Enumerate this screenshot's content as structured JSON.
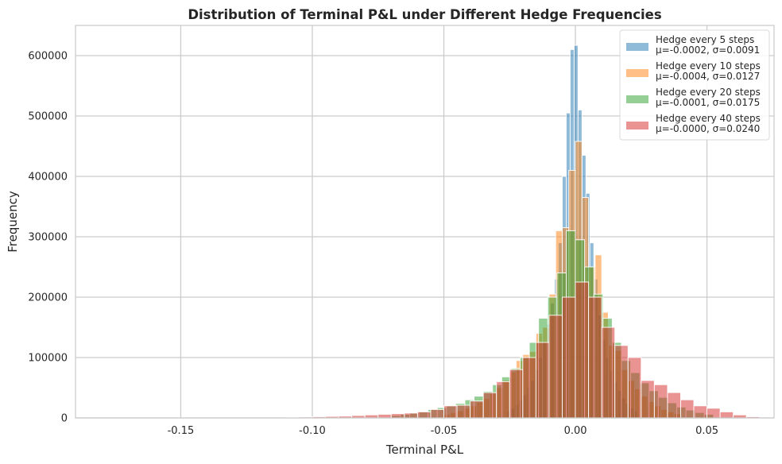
{
  "chart_data": {
    "type": "histogram",
    "title": "Distribution of Terminal P&L under Different Hedge Frequencies",
    "xlabel": "Terminal P&L",
    "ylabel": "Frequency",
    "xlim": [
      -0.19,
      0.0755
    ],
    "ylim": [
      0,
      650000
    ],
    "x_ticks": [
      -0.15,
      -0.1,
      -0.05,
      0.0,
      0.05
    ],
    "x_tick_labels": [
      "-0.15",
      "-0.10",
      "-0.05",
      "0.00",
      "0.05"
    ],
    "y_ticks": [
      0,
      100000,
      200000,
      300000,
      400000,
      500000,
      600000
    ],
    "y_tick_labels": [
      "0",
      "100000",
      "200000",
      "300000",
      "400000",
      "500000",
      "600000"
    ],
    "grid": true,
    "legend_position": "top-right",
    "series": [
      {
        "name": "Hedge every 5 steps",
        "stats": "μ=-0.0002, σ=0.0091",
        "color": "#1f77b4",
        "alpha": 0.5,
        "bins": [
          [
            -0.026,
            -0.0245,
            12000
          ],
          [
            -0.0245,
            -0.023,
            16000
          ],
          [
            -0.023,
            -0.0215,
            22000
          ],
          [
            -0.0215,
            -0.02,
            30000
          ],
          [
            -0.02,
            -0.0185,
            38000
          ],
          [
            -0.0185,
            -0.017,
            50000
          ],
          [
            -0.017,
            -0.0155,
            62000
          ],
          [
            -0.0155,
            -0.014,
            80000
          ],
          [
            -0.014,
            -0.0125,
            100000
          ],
          [
            -0.0125,
            -0.011,
            125000
          ],
          [
            -0.011,
            -0.0095,
            155000
          ],
          [
            -0.0095,
            -0.008,
            190000
          ],
          [
            -0.008,
            -0.0065,
            230000
          ],
          [
            -0.0065,
            -0.005,
            290000
          ],
          [
            -0.005,
            -0.0035,
            400000
          ],
          [
            -0.0035,
            -0.002,
            505000
          ],
          [
            -0.002,
            -0.0005,
            610000
          ],
          [
            -0.0005,
            0.001,
            617000
          ],
          [
            0.001,
            0.0025,
            510000
          ],
          [
            0.0025,
            0.004,
            435000
          ],
          [
            0.004,
            0.0055,
            372000
          ],
          [
            0.0055,
            0.007,
            290000
          ],
          [
            0.007,
            0.0085,
            230000
          ],
          [
            0.0085,
            0.01,
            170000
          ],
          [
            0.01,
            0.0115,
            130000
          ],
          [
            0.0115,
            0.013,
            100000
          ],
          [
            0.013,
            0.0145,
            78000
          ],
          [
            0.0145,
            0.016,
            60000
          ],
          [
            0.016,
            0.0175,
            45000
          ],
          [
            0.0175,
            0.019,
            33000
          ],
          [
            0.019,
            0.0205,
            24000
          ],
          [
            0.0205,
            0.022,
            17000
          ],
          [
            0.022,
            0.0235,
            12000
          ]
        ]
      },
      {
        "name": "Hedge every 10 steps",
        "stats": "μ=-0.0004, σ=0.0127",
        "color": "#ff7f0e",
        "alpha": 0.5,
        "bins": [
          [
            -0.05,
            -0.0475,
            6000
          ],
          [
            -0.0475,
            -0.045,
            9000
          ],
          [
            -0.045,
            -0.0425,
            12000
          ],
          [
            -0.0425,
            -0.04,
            16000
          ],
          [
            -0.04,
            -0.0375,
            20000
          ],
          [
            -0.0375,
            -0.035,
            26000
          ],
          [
            -0.035,
            -0.0325,
            32000
          ],
          [
            -0.0325,
            -0.03,
            40000
          ],
          [
            -0.03,
            -0.0275,
            50000
          ],
          [
            -0.0275,
            -0.025,
            62000
          ],
          [
            -0.025,
            -0.0225,
            76000
          ],
          [
            -0.0225,
            -0.02,
            95000
          ],
          [
            -0.02,
            -0.0175,
            105000
          ],
          [
            -0.0175,
            -0.015,
            110000
          ],
          [
            -0.015,
            -0.0125,
            140000
          ],
          [
            -0.0125,
            -0.01,
            150000
          ],
          [
            -0.01,
            -0.0075,
            205000
          ],
          [
            -0.0075,
            -0.005,
            310000
          ],
          [
            -0.005,
            -0.0025,
            315000
          ],
          [
            -0.0025,
            0.0,
            410000
          ],
          [
            0.0,
            0.0025,
            458000
          ],
          [
            0.0025,
            0.005,
            365000
          ],
          [
            0.005,
            0.0075,
            250000
          ],
          [
            0.0075,
            0.01,
            270000
          ],
          [
            0.01,
            0.0125,
            175000
          ],
          [
            0.0125,
            0.015,
            120000
          ],
          [
            0.015,
            0.0175,
            112000
          ],
          [
            0.0175,
            0.02,
            80000
          ],
          [
            0.02,
            0.0225,
            62000
          ],
          [
            0.0225,
            0.025,
            48000
          ],
          [
            0.025,
            0.0275,
            36000
          ],
          [
            0.0275,
            0.03,
            27000
          ],
          [
            0.03,
            0.0325,
            20000
          ],
          [
            0.0325,
            0.035,
            14000
          ],
          [
            0.035,
            0.0375,
            10000
          ],
          [
            0.0375,
            0.04,
            7000
          ]
        ]
      },
      {
        "name": "Hedge every 20 steps",
        "stats": "μ=-0.0001, σ=0.0175",
        "color": "#2ca02c",
        "alpha": 0.5,
        "bins": [
          [
            -0.07,
            -0.0665,
            4000
          ],
          [
            -0.0665,
            -0.063,
            6000
          ],
          [
            -0.063,
            -0.0595,
            8000
          ],
          [
            -0.0595,
            -0.056,
            10000
          ],
          [
            -0.056,
            -0.0525,
            14000
          ],
          [
            -0.0525,
            -0.049,
            17000
          ],
          [
            -0.049,
            -0.0455,
            20000
          ],
          [
            -0.0455,
            -0.042,
            24000
          ],
          [
            -0.042,
            -0.0385,
            30000
          ],
          [
            -0.0385,
            -0.035,
            36000
          ],
          [
            -0.035,
            -0.0315,
            44000
          ],
          [
            -0.0315,
            -0.028,
            55000
          ],
          [
            -0.028,
            -0.0245,
            68000
          ],
          [
            -0.0245,
            -0.021,
            82000
          ],
          [
            -0.021,
            -0.0175,
            100000
          ],
          [
            -0.0175,
            -0.014,
            125000
          ],
          [
            -0.014,
            -0.0105,
            165000
          ],
          [
            -0.0105,
            -0.007,
            200000
          ],
          [
            -0.007,
            -0.0035,
            240000
          ],
          [
            -0.0035,
            0.0,
            310000
          ],
          [
            0.0,
            0.0035,
            295000
          ],
          [
            0.0035,
            0.007,
            250000
          ],
          [
            0.007,
            0.0105,
            205000
          ],
          [
            0.0105,
            0.014,
            165000
          ],
          [
            0.014,
            0.0175,
            125000
          ],
          [
            0.0175,
            0.021,
            95000
          ],
          [
            0.021,
            0.0245,
            75000
          ],
          [
            0.0245,
            0.028,
            58000
          ],
          [
            0.028,
            0.0315,
            45000
          ],
          [
            0.0315,
            0.035,
            34000
          ],
          [
            0.035,
            0.0385,
            25000
          ],
          [
            0.0385,
            0.042,
            18000
          ],
          [
            0.042,
            0.0455,
            13000
          ],
          [
            0.0455,
            0.049,
            9000
          ],
          [
            0.049,
            0.0525,
            6000
          ]
        ]
      },
      {
        "name": "Hedge every 40 steps",
        "stats": "μ=-0.0000, σ=0.0240",
        "color": "#d62728",
        "alpha": 0.5,
        "bins": [
          [
            -0.11,
            -0.105,
            1000
          ],
          [
            -0.105,
            -0.1,
            1500
          ],
          [
            -0.1,
            -0.095,
            2000
          ],
          [
            -0.095,
            -0.09,
            2500
          ],
          [
            -0.09,
            -0.085,
            3000
          ],
          [
            -0.085,
            -0.08,
            4000
          ],
          [
            -0.08,
            -0.075,
            5000
          ],
          [
            -0.075,
            -0.07,
            6000
          ],
          [
            -0.07,
            -0.065,
            7000
          ],
          [
            -0.065,
            -0.06,
            8000
          ],
          [
            -0.06,
            -0.055,
            10000
          ],
          [
            -0.055,
            -0.05,
            14000
          ],
          [
            -0.05,
            -0.045,
            20000
          ],
          [
            -0.045,
            -0.04,
            21000
          ],
          [
            -0.04,
            -0.035,
            28000
          ],
          [
            -0.035,
            -0.03,
            42000
          ],
          [
            -0.03,
            -0.025,
            60000
          ],
          [
            -0.025,
            -0.02,
            80000
          ],
          [
            -0.02,
            -0.015,
            100000
          ],
          [
            -0.015,
            -0.01,
            125000
          ],
          [
            -0.01,
            -0.005,
            170000
          ],
          [
            -0.005,
            0.0,
            200000
          ],
          [
            0.0,
            0.005,
            225000
          ],
          [
            0.005,
            0.01,
            200000
          ],
          [
            0.01,
            0.015,
            150000
          ],
          [
            0.015,
            0.02,
            120000
          ],
          [
            0.02,
            0.025,
            100000
          ],
          [
            0.025,
            0.03,
            62000
          ],
          [
            0.03,
            0.035,
            55000
          ],
          [
            0.035,
            0.04,
            42000
          ],
          [
            0.04,
            0.045,
            30000
          ],
          [
            0.045,
            0.05,
            20000
          ],
          [
            0.05,
            0.055,
            16000
          ],
          [
            0.055,
            0.06,
            10000
          ],
          [
            0.06,
            0.065,
            5000
          ],
          [
            0.065,
            0.07,
            2000
          ]
        ]
      }
    ]
  }
}
